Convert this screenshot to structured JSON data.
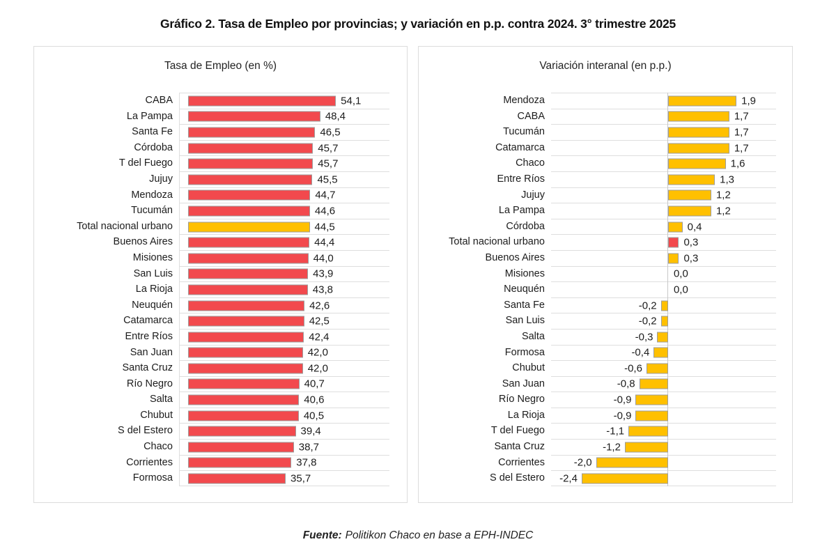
{
  "title": "Gráfico 2. Tasa de Empleo por provincias; y variación en p.p. contra 2024. 3° trimestre 2025",
  "source": {
    "label": "Fuente:",
    "text": "Politikon Chaco en base a EPH-INDEC"
  },
  "colors": {
    "bar_red": "#F2494D",
    "bar_gold": "#FFC000",
    "bar_border": "#9C9C9C",
    "gridline": "#DEDEDE",
    "panel_border": "#DCDCDC",
    "text": "#1C1C1C"
  },
  "chart_data": [
    {
      "type": "bar",
      "orientation": "horizontal",
      "title": "Tasa de Empleo (en %)",
      "xlabel": "",
      "ylabel": "",
      "xlim": [
        0,
        77
      ],
      "grid": true,
      "legend": false,
      "value_labels": "end-of-bar, comma decimal, 1 decimal place",
      "bar_color": "#F2494D",
      "highlight": {
        "category": "Total nacional urbano",
        "color": "#FFC000"
      },
      "categories": [
        "CABA",
        "La Pampa",
        "Santa Fe",
        "Córdoba",
        "T del Fuego",
        "Jujuy",
        "Mendoza",
        "Tucumán",
        "Total nacional urbano",
        "Buenos Aires",
        "Misiones",
        "San Luis",
        "La Rioja",
        "Neuquén",
        "Catamarca",
        "Entre Ríos",
        "San Juan",
        "Santa Cruz",
        "Río Negro",
        "Salta",
        "Chubut",
        "S del Estero",
        "Chaco",
        "Corrientes",
        "Formosa"
      ],
      "values": [
        54.1,
        48.4,
        46.5,
        45.7,
        45.7,
        45.5,
        44.7,
        44.6,
        44.5,
        44.4,
        44.0,
        43.9,
        43.8,
        42.6,
        42.5,
        42.4,
        42.0,
        42.0,
        40.7,
        40.6,
        40.5,
        39.4,
        38.7,
        37.8,
        35.7
      ]
    },
    {
      "type": "bar",
      "orientation": "horizontal",
      "title": "Variación interanal (en p.p.)",
      "xlabel": "",
      "ylabel": "",
      "xlim": [
        -3.25,
        3.0
      ],
      "grid": true,
      "legend": false,
      "value_labels": "end-of-bar, comma decimal, 1 decimal place",
      "bar_color": "#FFC000",
      "highlight": {
        "category": "Total nacional urbano",
        "color": "#F2494D"
      },
      "categories": [
        "Mendoza",
        "CABA",
        "Tucumán",
        "Catamarca",
        "Chaco",
        "Entre Ríos",
        "Jujuy",
        "La Pampa",
        "Córdoba",
        "Total nacional urbano",
        "Buenos Aires",
        "Misiones",
        "Neuquén",
        "Santa Fe",
        "San Luis",
        "Salta",
        "Formosa",
        "Chubut",
        "San Juan",
        "Río Negro",
        "La Rioja",
        "T del Fuego",
        "Santa Cruz",
        "Corrientes",
        "S del Estero"
      ],
      "values": [
        1.9,
        1.7,
        1.7,
        1.7,
        1.6,
        1.3,
        1.2,
        1.2,
        0.4,
        0.3,
        0.3,
        0.0,
        0.0,
        -0.2,
        -0.2,
        -0.3,
        -0.4,
        -0.6,
        -0.8,
        -0.9,
        -0.9,
        -1.1,
        -1.2,
        -2.0,
        -2.4
      ]
    }
  ]
}
